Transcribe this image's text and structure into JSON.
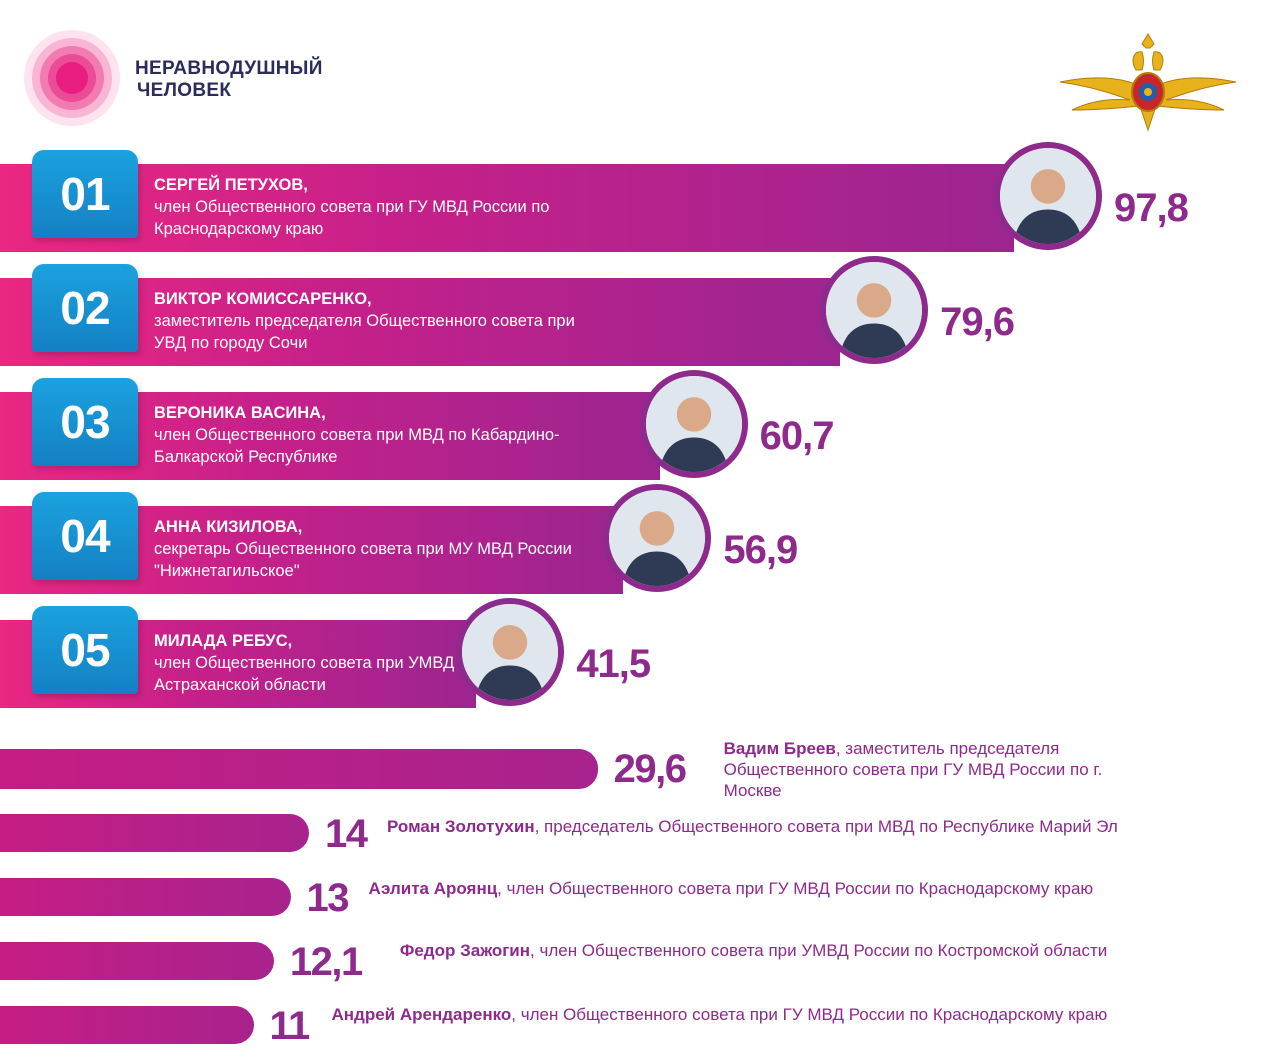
{
  "brand": {
    "line1": "НЕРАВНОДУШНЫЙ",
    "line2": "ЧЕЛОВЕК",
    "colors": {
      "pink": "#ea2782",
      "purple": "#8e2a8c",
      "blue": "#1ba2e0",
      "navy": "#2b2c5a"
    }
  },
  "emblem": {
    "icon": "mvd-double-headed-eagle-emblem-icon"
  },
  "chart_data": {
    "type": "bar",
    "orientation": "horizontal",
    "top_ranked": [
      {
        "rank": "01",
        "name": "СЕРГЕЙ ПЕТУХОВ,",
        "role": "член Общественного совета при ГУ МВД России по Краснодарскому краю",
        "value": 97.8,
        "label": "97,8",
        "photo": "sergey-petukhov-photo"
      },
      {
        "rank": "02",
        "name": "ВИКТОР КОМИССАРЕНКО,",
        "role": "заместитель председателя Общественного совета при УВД по городу Сочи",
        "value": 79.6,
        "label": "79,6",
        "photo": "viktor-komissarenko-photo"
      },
      {
        "rank": "03",
        "name": "ВЕРОНИКА ВАСИНА,",
        "role": "член Общественного совета при МВД по Кабардино-Балкарской Республике",
        "value": 60.7,
        "label": "60,7",
        "photo": "veronika-vasina-photo"
      },
      {
        "rank": "04",
        "name": "АННА КИЗИЛОВА,",
        "role": "секретарь Общественного совета при МУ МВД России \"Нижнетагильское\"",
        "value": 56.9,
        "label": "56,9",
        "photo": "anna-kizilova-photo"
      },
      {
        "rank": "05",
        "name": "МИЛАДА РЕБУС,",
        "role": "член Общественного совета при УМВД России по Астраханской области",
        "value": 41.5,
        "label": "41,5",
        "photo": "milada-rebus-photo"
      }
    ],
    "others": [
      {
        "name": "Вадим Бреев",
        "role": ", заместитель председателя Общественного совета при ГУ МВД России по г. Москве",
        "value": 29.6,
        "label": "29,6"
      },
      {
        "name": "Роман Золотухин",
        "role": ", председатель Общественного совета при МВД по Республике Марий Эл",
        "value": 14,
        "label": "14"
      },
      {
        "name": "Аэлита Ароянц",
        "role": ", член Общественного совета при ГУ МВД России по Краснодарскому краю",
        "value": 13,
        "label": "13"
      },
      {
        "name": "Федор Зажогин",
        "role": ", член Общественного совета при УМВД России по Костромской области",
        "value": 12.1,
        "label": "12,1"
      },
      {
        "name": "Андрей Арендаренко",
        "role": ", член Общественного совета при ГУ МВД России по Краснодарскому краю",
        "value": 11,
        "label": "11"
      }
    ]
  }
}
